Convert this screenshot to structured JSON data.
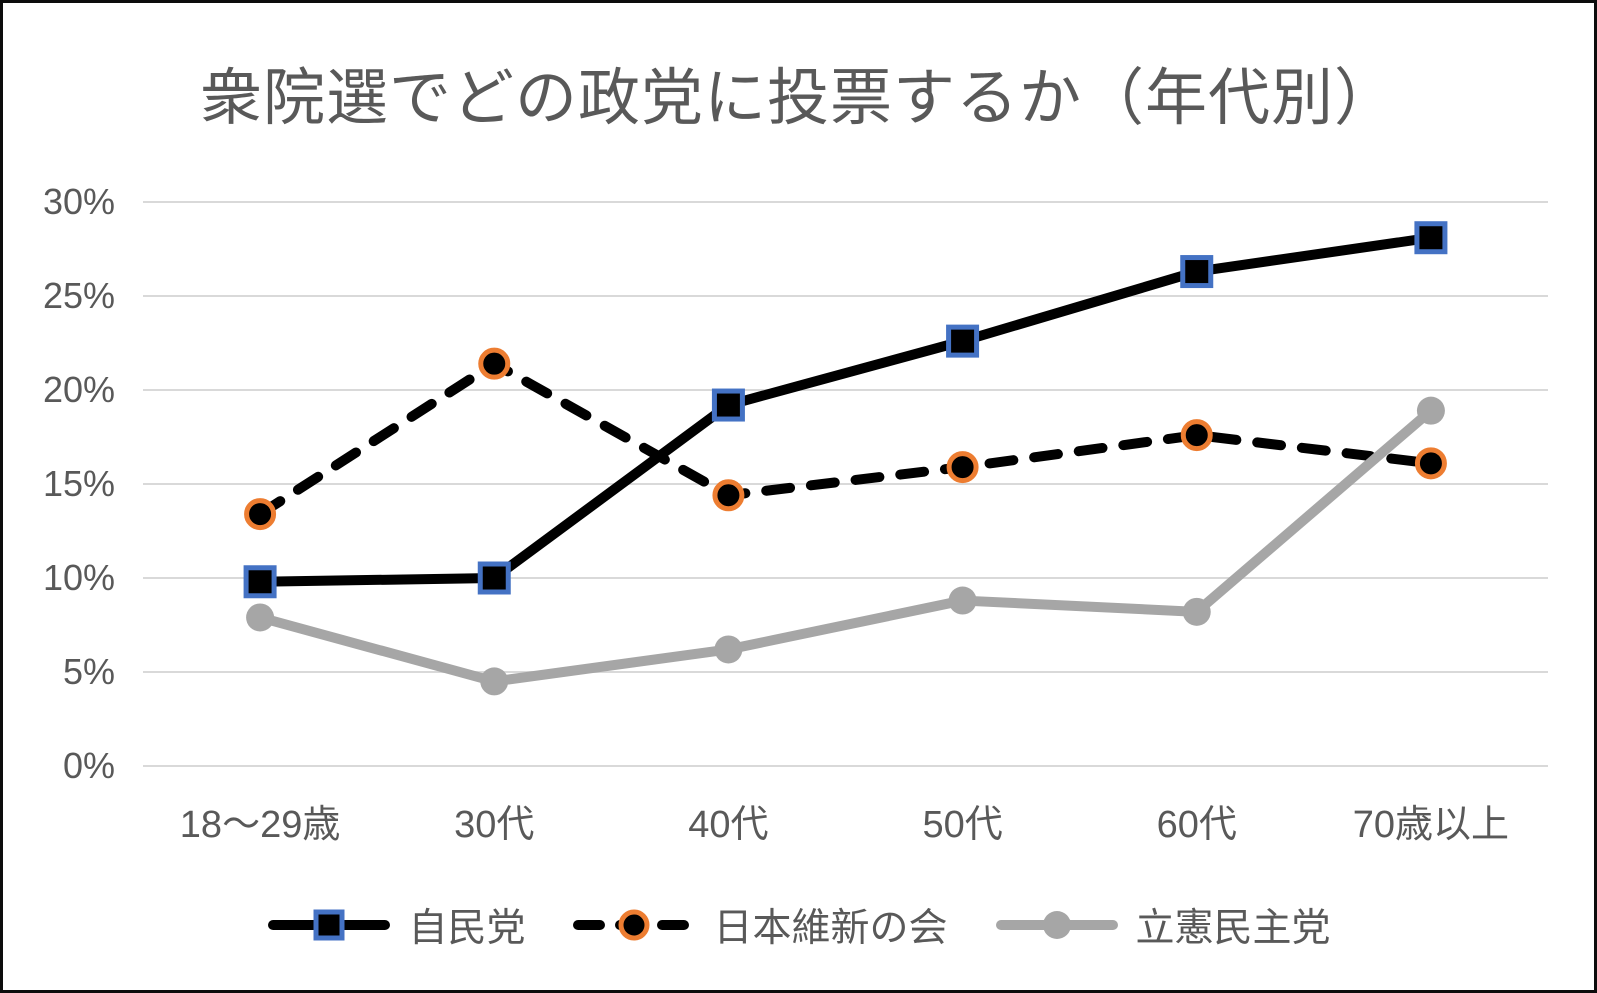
{
  "chart_data": {
    "type": "line",
    "title": "衆院選でどの政党に投票するか（年代別）",
    "categories": [
      "18〜29歳",
      "30代",
      "40代",
      "50代",
      "60代",
      "70歳以上"
    ],
    "series": [
      {
        "name": "自民党",
        "values": [
          9.8,
          10.0,
          19.2,
          22.6,
          26.3,
          28.1
        ],
        "line_color": "#000000",
        "line_style": "solid",
        "marker": "square",
        "marker_fill": "#000000",
        "marker_border": "#4472C4"
      },
      {
        "name": "日本維新の会",
        "values": [
          13.4,
          21.4,
          14.4,
          15.9,
          17.6,
          16.1
        ],
        "line_color": "#000000",
        "line_style": "dashed",
        "marker": "circle",
        "marker_fill": "#000000",
        "marker_border": "#ED7D31"
      },
      {
        "name": "立憲民主党",
        "values": [
          7.9,
          4.5,
          6.2,
          8.8,
          8.2,
          18.9
        ],
        "line_color": "#A6A6A6",
        "line_style": "solid",
        "marker": "circle",
        "marker_fill": "#A6A6A6",
        "marker_border": "#A6A6A6"
      }
    ],
    "xlabel": "",
    "ylabel": "",
    "ylim": [
      0,
      30
    ],
    "ytick_step": 5,
    "ytick_labels": [
      "0%",
      "5%",
      "10%",
      "15%",
      "20%",
      "25%",
      "30%"
    ],
    "grid": true,
    "legend_position": "bottom"
  },
  "colors": {
    "background": "#FFFFFF",
    "frame": "#0C0C0C",
    "grid": "#D9D9D9",
    "text": "#595959",
    "series_black": "#000000",
    "ldp_marker_border": "#4472C4",
    "ishin_marker_border": "#ED7D31",
    "cdp_gray": "#A6A6A6"
  }
}
